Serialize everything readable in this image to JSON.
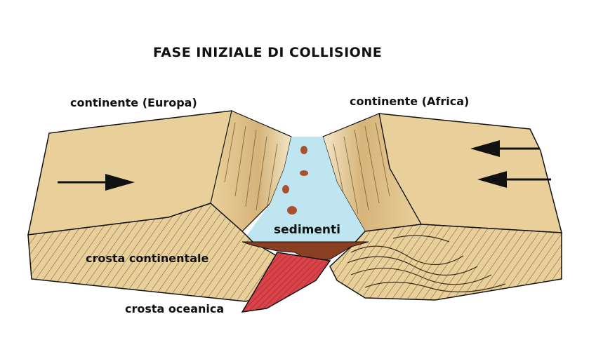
{
  "title": "FASE INIZIALE DI COLLISIONE",
  "labels": {
    "continent_europe": "continente (Europa)",
    "continent_africa": "continente (Africa)",
    "sediments": "sedimenti",
    "continental_crust": "crosta continentale",
    "oceanic_crust": "crosta oceanica"
  },
  "colors": {
    "background": "#ffffff",
    "continent_tan": "#e9d09a",
    "continent_shadow": "#c9a868",
    "ocean_water": "#bfe6f0",
    "oceanic_crust": "#d8444a",
    "sediment_brown": "#8a3f22",
    "outline": "#111111"
  },
  "arrows": {
    "europe_direction": "right",
    "africa_direction": "left"
  }
}
